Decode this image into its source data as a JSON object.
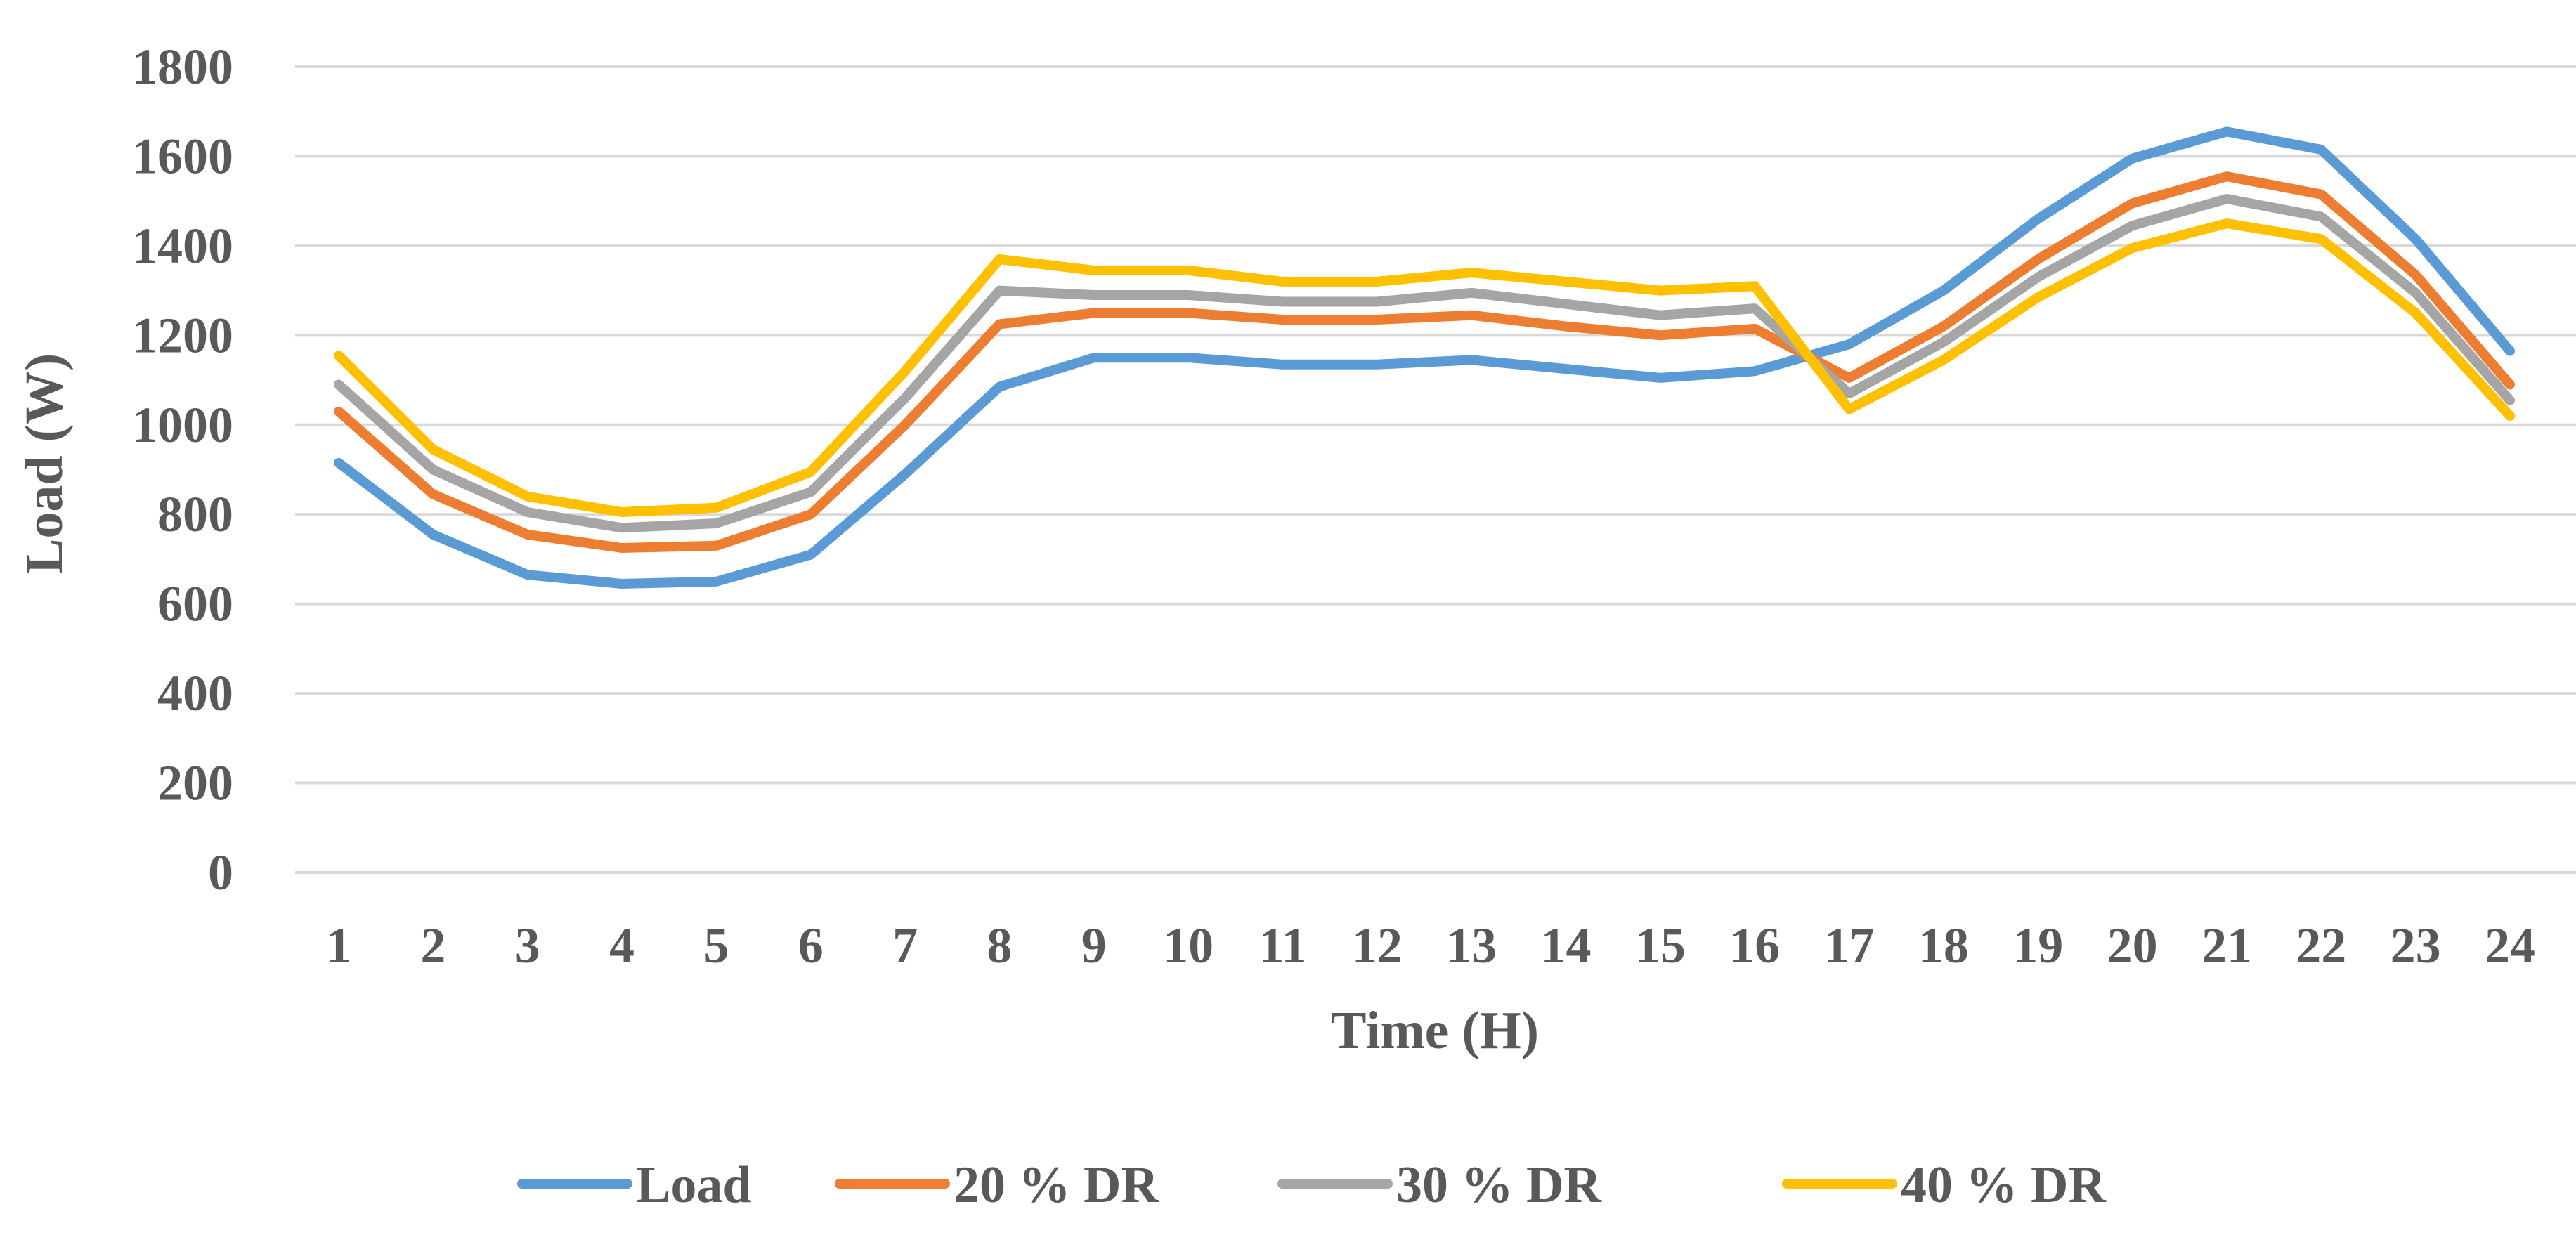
{
  "chart_data": {
    "type": "line",
    "title": "",
    "xlabel": "Time (H)",
    "ylabel": "Load (W)",
    "ylim": [
      0,
      1800
    ],
    "yticks": [
      0,
      200,
      400,
      600,
      800,
      1000,
      1200,
      1400,
      1600,
      1800
    ],
    "grid": true,
    "legend_position": "bottom",
    "categories": [
      "1",
      "2",
      "3",
      "4",
      "5",
      "6",
      "7",
      "8",
      "9",
      "10",
      "11",
      "12",
      "13",
      "14",
      "15",
      "16",
      "17",
      "18",
      "19",
      "20",
      "21",
      "22",
      "23",
      "24"
    ],
    "series": [
      {
        "name": "Load",
        "color": "#5b9bd5",
        "values": [
          915,
          755,
          665,
          645,
          650,
          710,
          890,
          1085,
          1150,
          1150,
          1135,
          1135,
          1145,
          1125,
          1105,
          1120,
          1180,
          1300,
          1460,
          1595,
          1655,
          1615,
          1415,
          1165
        ]
      },
      {
        "name": "20 % DR",
        "color": "#ed7d31",
        "values": [
          1030,
          845,
          755,
          725,
          730,
          800,
          1000,
          1225,
          1250,
          1250,
          1235,
          1235,
          1245,
          1220,
          1200,
          1215,
          1105,
          1220,
          1370,
          1495,
          1555,
          1515,
          1335,
          1090
        ]
      },
      {
        "name": "30 % DR",
        "color": "#a5a5a5",
        "values": [
          1090,
          900,
          805,
          770,
          780,
          850,
          1060,
          1300,
          1290,
          1290,
          1275,
          1275,
          1295,
          1270,
          1245,
          1260,
          1070,
          1185,
          1330,
          1445,
          1505,
          1465,
          1295,
          1055
        ]
      },
      {
        "name": "40 % DR",
        "color": "#ffc000",
        "values": [
          1155,
          945,
          840,
          805,
          815,
          895,
          1120,
          1370,
          1345,
          1345,
          1320,
          1320,
          1340,
          1320,
          1300,
          1310,
          1035,
          1145,
          1285,
          1395,
          1450,
          1415,
          1250,
          1020
        ]
      }
    ]
  }
}
